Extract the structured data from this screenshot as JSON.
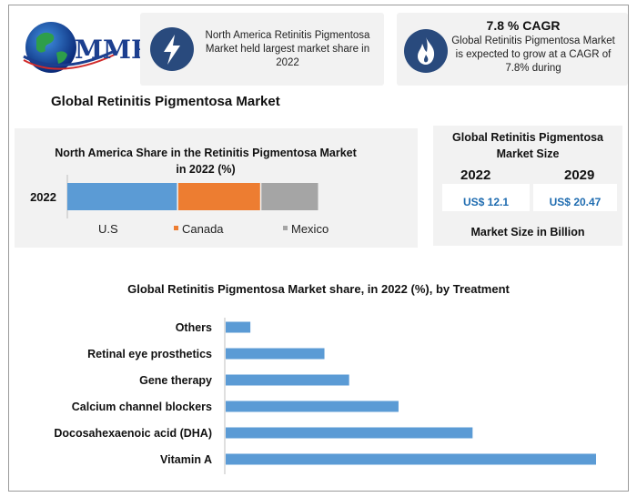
{
  "brand": {
    "logo_text": "MMR"
  },
  "highlights": [
    {
      "icon": "lightning-icon",
      "text": "North America Retinitis Pigmentosa Market held largest market share in 2022"
    },
    {
      "icon": "flame-icon",
      "title": "7.8 % CAGR",
      "text": "Global Retinitis Pigmentosa Market is expected to grow at a CAGR of 7.8% during"
    }
  ],
  "main_title": "Global Retinitis Pigmentosa Market",
  "market_size": {
    "title": "Global Retinitis Pigmentosa Market Size",
    "items": [
      {
        "year": "2022",
        "value": "US$ 12.1"
      },
      {
        "year": "2029",
        "value": "US$ 20.47"
      }
    ],
    "footer": "Market Size in Billion"
  },
  "chart_data": [
    {
      "type": "bar",
      "orientation": "horizontal-stacked",
      "title": "North America Share in the Retinitis Pigmentosa Market in 2022 (%)",
      "categories": [
        "2022"
      ],
      "series": [
        {
          "name": "U.S",
          "values": [
            44
          ],
          "color": "#5b9bd5"
        },
        {
          "name": "Canada",
          "values": [
            33
          ],
          "color": "#ed7d31"
        },
        {
          "name": "Mexico",
          "values": [
            23
          ],
          "color": "#a5a5a5"
        }
      ],
      "legend": "bottom"
    },
    {
      "type": "bar",
      "orientation": "horizontal",
      "title": "Global Retinitis Pigmentosa Market share, in 2022 (%), by Treatment",
      "categories": [
        "Others",
        "Retinal eye prosthetics",
        "Gene therapy",
        "Calcium channel blockers",
        "Docosahexaenoic acid (DHA)",
        "Vitamin A"
      ],
      "values": [
        4,
        16,
        20,
        28,
        40,
        60
      ],
      "color": "#5b9bd5",
      "grid": false
    }
  ]
}
